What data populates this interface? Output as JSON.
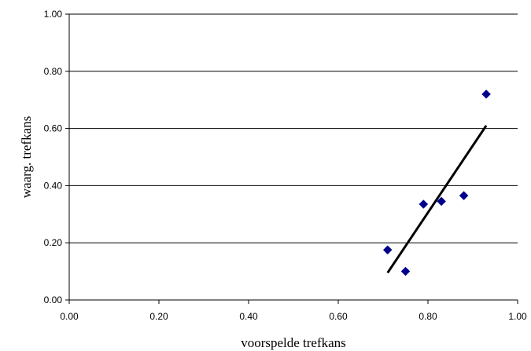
{
  "chart_data": {
    "type": "scatter",
    "title": "",
    "xlabel": "voorspelde trefkans",
    "ylabel": "waarg. trefkans",
    "xlim": [
      0.0,
      1.0
    ],
    "ylim": [
      0.0,
      1.0
    ],
    "x_ticks": [
      "0.00",
      "0.20",
      "0.40",
      "0.60",
      "0.80",
      "1.00"
    ],
    "y_ticks": [
      "0.00",
      "0.20",
      "0.40",
      "0.60",
      "0.80",
      "1.00"
    ],
    "grid": "horizontal",
    "legend": "none",
    "marker": "diamond",
    "marker_color": "#00008B",
    "line_color": "#000000",
    "points": [
      {
        "x": 0.71,
        "y": 0.175
      },
      {
        "x": 0.75,
        "y": 0.1
      },
      {
        "x": 0.79,
        "y": 0.335
      },
      {
        "x": 0.83,
        "y": 0.345
      },
      {
        "x": 0.88,
        "y": 0.365
      },
      {
        "x": 0.93,
        "y": 0.72
      }
    ],
    "trendline": {
      "x": [
        0.71,
        0.93
      ],
      "y": [
        0.095,
        0.61
      ]
    }
  }
}
